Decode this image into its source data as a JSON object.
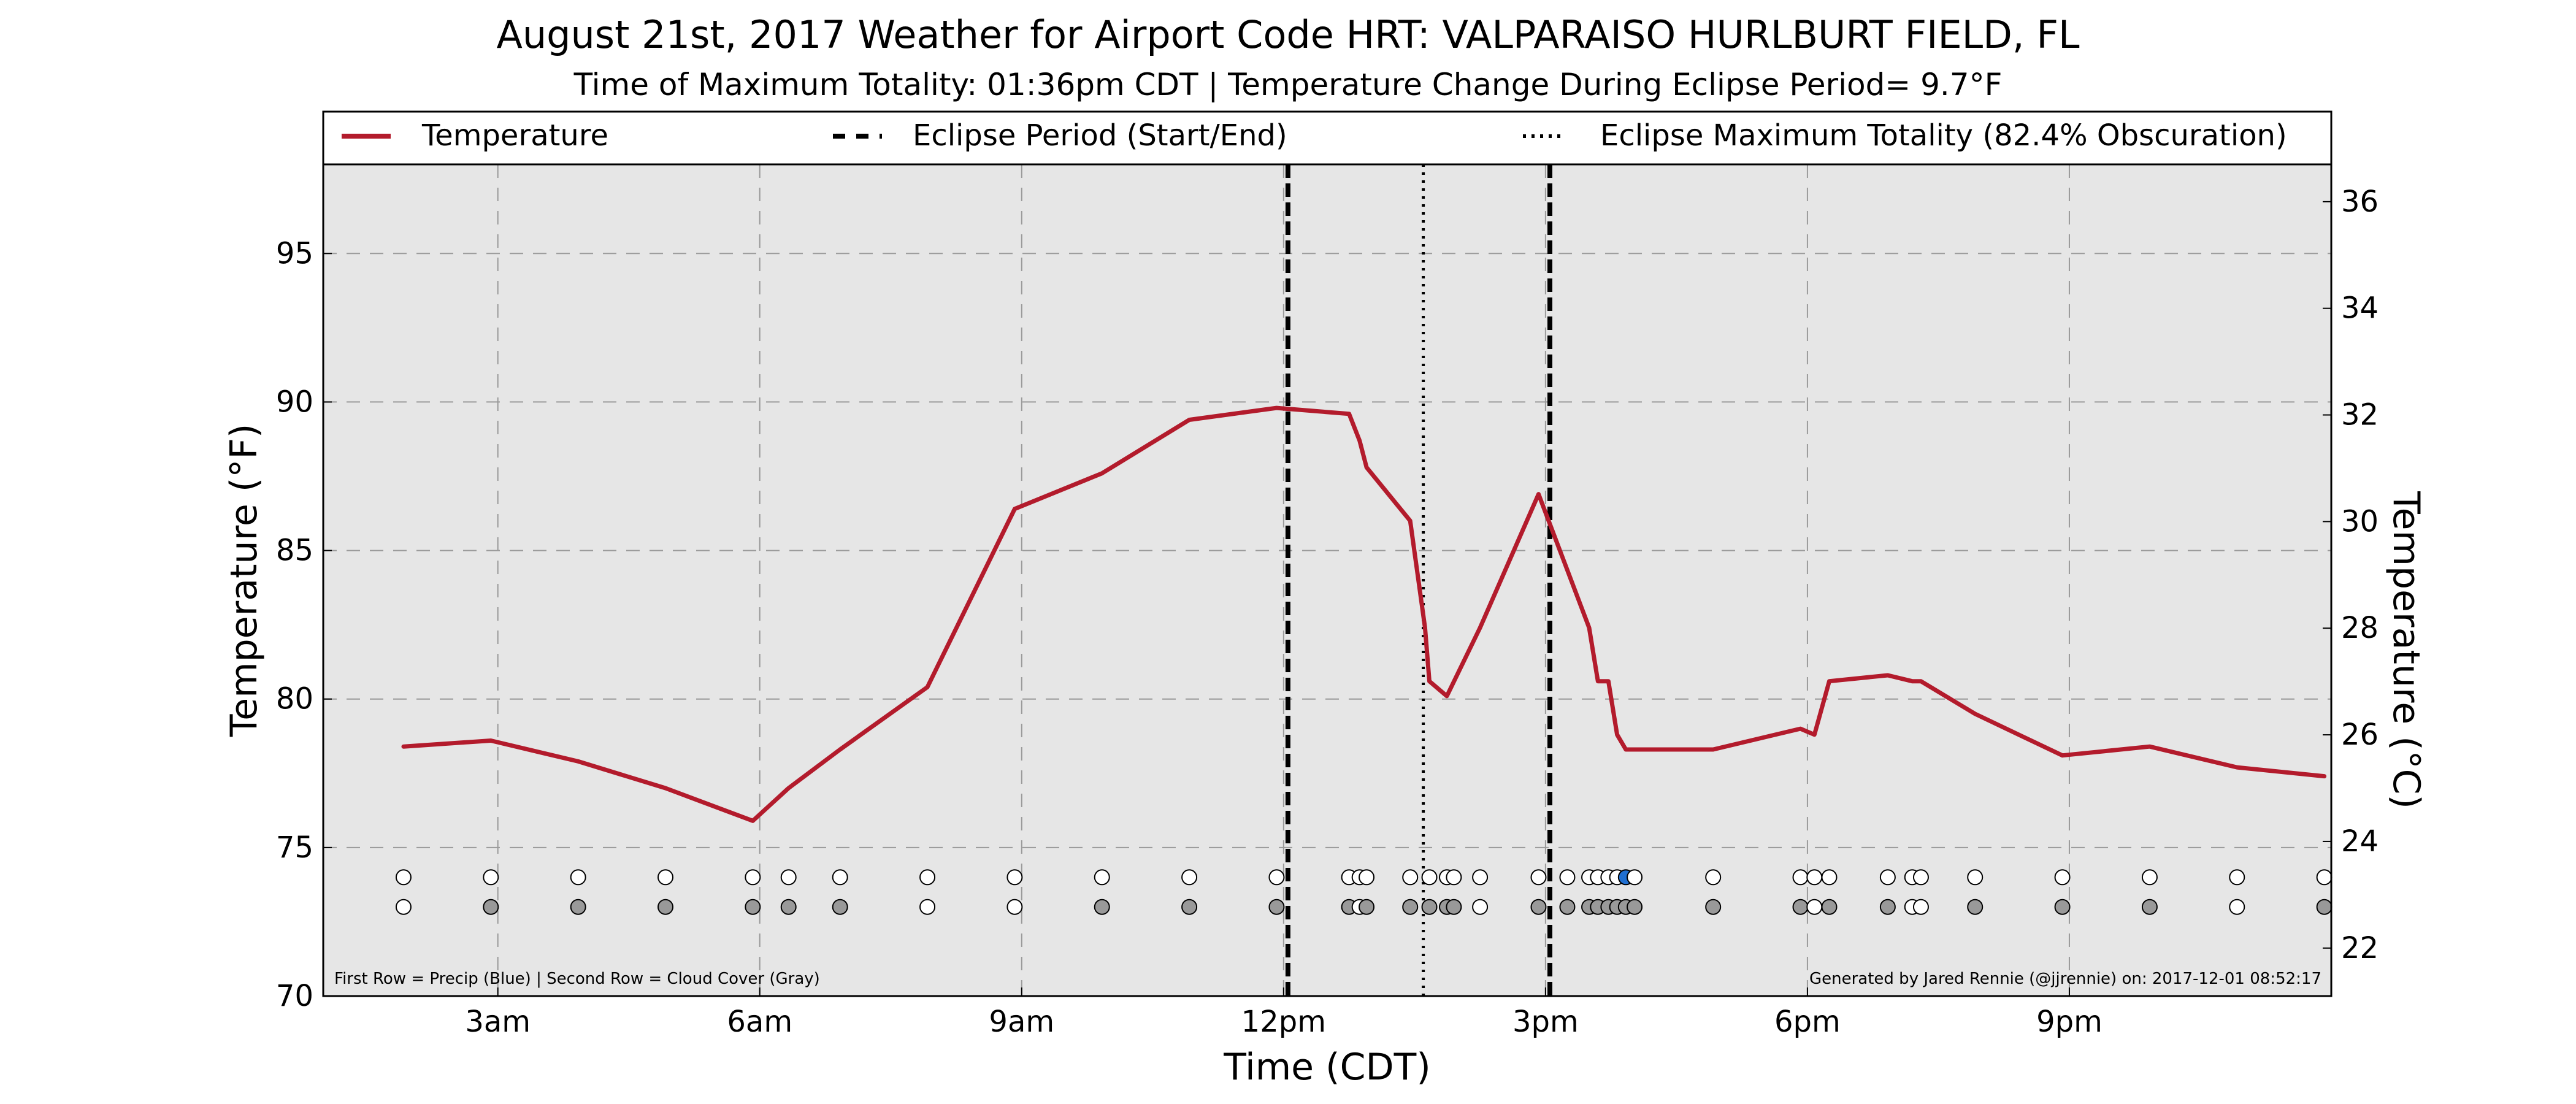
{
  "chart_data": {
    "type": "line",
    "title": "August 21st, 2017 Weather for Airport Code HRT: VALPARAISO HURLBURT FIELD, FL",
    "subtitle": "Time of Maximum Totality: 01:36pm CDT | Temperature Change During Eclipse Period= 9.7°F",
    "xlabel": "Time (CDT)",
    "ylabel": "Temperature (°F)",
    "ylabel_right": "Temperature (°C)",
    "xlim_hours": [
      1,
      24
    ],
    "ylim": [
      70,
      98
    ],
    "ylim_right_celsius": [
      21.1,
      36.7
    ],
    "grid": true,
    "legend_position": "top",
    "x_tick_labels": [
      {
        "hour": 3,
        "label": "3am"
      },
      {
        "hour": 6,
        "label": "6am"
      },
      {
        "hour": 9,
        "label": "9am"
      },
      {
        "hour": 12,
        "label": "12pm"
      },
      {
        "hour": 15,
        "label": "3pm"
      },
      {
        "hour": 18,
        "label": "6pm"
      },
      {
        "hour": 21,
        "label": "9pm"
      }
    ],
    "y_ticks": [
      70,
      75,
      80,
      85,
      90,
      95
    ],
    "y_ticks_right": [
      22,
      24,
      26,
      28,
      30,
      32,
      34,
      36
    ],
    "series": [
      {
        "name": "Temperature",
        "color": "#b31b2c",
        "x_hours": [
          1.92,
          2.92,
          3.92,
          4.92,
          5.92,
          6.33,
          6.92,
          7.92,
          8.92,
          9.92,
          10.92,
          11.92,
          12.75,
          12.87,
          12.95,
          13.45,
          13.62,
          13.67,
          13.87,
          14.25,
          14.92,
          15.5,
          15.6,
          15.72,
          15.82,
          15.92,
          16.92,
          17.92,
          18.08,
          18.25,
          18.92,
          19.2,
          19.3,
          19.92,
          20.92,
          21.92,
          22.92,
          23.92
        ],
        "values": [
          78.4,
          78.6,
          77.9,
          77.0,
          75.9,
          77.0,
          78.3,
          80.4,
          86.4,
          87.6,
          89.4,
          89.8,
          89.6,
          88.7,
          87.8,
          86.0,
          82.4,
          80.6,
          80.1,
          82.4,
          86.9,
          82.4,
          80.6,
          80.6,
          78.8,
          78.3,
          78.3,
          79.0,
          78.8,
          80.6,
          80.8,
          80.6,
          80.6,
          79.5,
          78.1,
          78.4,
          77.7,
          77.4
        ]
      }
    ],
    "eclipse_period": {
      "name": "Eclipse Period (Start/End)",
      "start_hour": 12.05,
      "end_hour": 15.05
    },
    "max_totality": {
      "name": "Eclipse Maximum Totality (82.4% Obscuration)",
      "hour": 13.6
    },
    "observations": {
      "precip_row_value": 74,
      "cloud_row_value": 73,
      "precip_color": "#1f6fd1",
      "cloud_color": "#999999",
      "empty_color": "#ffffff",
      "points": [
        {
          "hour": 1.92,
          "precip": false,
          "cloud": false
        },
        {
          "hour": 2.92,
          "precip": false,
          "cloud": true
        },
        {
          "hour": 3.92,
          "precip": false,
          "cloud": true
        },
        {
          "hour": 4.92,
          "precip": false,
          "cloud": true
        },
        {
          "hour": 5.92,
          "precip": false,
          "cloud": true
        },
        {
          "hour": 6.33,
          "precip": false,
          "cloud": true
        },
        {
          "hour": 6.92,
          "precip": false,
          "cloud": true
        },
        {
          "hour": 7.92,
          "precip": false,
          "cloud": false
        },
        {
          "hour": 8.92,
          "precip": false,
          "cloud": false
        },
        {
          "hour": 9.92,
          "precip": false,
          "cloud": true
        },
        {
          "hour": 10.92,
          "precip": false,
          "cloud": true
        },
        {
          "hour": 11.92,
          "precip": false,
          "cloud": true
        },
        {
          "hour": 12.75,
          "precip": false,
          "cloud": true
        },
        {
          "hour": 12.87,
          "precip": false,
          "cloud": false
        },
        {
          "hour": 12.95,
          "precip": false,
          "cloud": true
        },
        {
          "hour": 13.45,
          "precip": false,
          "cloud": true
        },
        {
          "hour": 13.67,
          "precip": false,
          "cloud": true
        },
        {
          "hour": 13.87,
          "precip": false,
          "cloud": true
        },
        {
          "hour": 13.95,
          "precip": false,
          "cloud": true
        },
        {
          "hour": 14.25,
          "precip": false,
          "cloud": false
        },
        {
          "hour": 14.92,
          "precip": false,
          "cloud": true
        },
        {
          "hour": 15.25,
          "precip": false,
          "cloud": true
        },
        {
          "hour": 15.5,
          "precip": false,
          "cloud": true
        },
        {
          "hour": 15.6,
          "precip": false,
          "cloud": true
        },
        {
          "hour": 15.72,
          "precip": false,
          "cloud": true
        },
        {
          "hour": 15.82,
          "precip": false,
          "cloud": true
        },
        {
          "hour": 15.92,
          "precip": true,
          "cloud": true
        },
        {
          "hour": 16.02,
          "precip": false,
          "cloud": true
        },
        {
          "hour": 16.92,
          "precip": false,
          "cloud": true
        },
        {
          "hour": 17.92,
          "precip": false,
          "cloud": true
        },
        {
          "hour": 18.08,
          "precip": false,
          "cloud": false
        },
        {
          "hour": 18.25,
          "precip": false,
          "cloud": true
        },
        {
          "hour": 18.92,
          "precip": false,
          "cloud": true
        },
        {
          "hour": 19.2,
          "precip": false,
          "cloud": false
        },
        {
          "hour": 19.3,
          "precip": false,
          "cloud": false
        },
        {
          "hour": 19.92,
          "precip": false,
          "cloud": true
        },
        {
          "hour": 20.92,
          "precip": false,
          "cloud": true
        },
        {
          "hour": 21.92,
          "precip": false,
          "cloud": true
        },
        {
          "hour": 22.92,
          "precip": false,
          "cloud": false
        },
        {
          "hour": 23.92,
          "precip": false,
          "cloud": true
        }
      ]
    },
    "annotations": {
      "left": "First Row = Precip (Blue) | Second Row = Cloud Cover (Gray)",
      "right": "Generated by Jared Rennie (@jjrennie) on: 2017-12-01 08:52:17"
    }
  }
}
